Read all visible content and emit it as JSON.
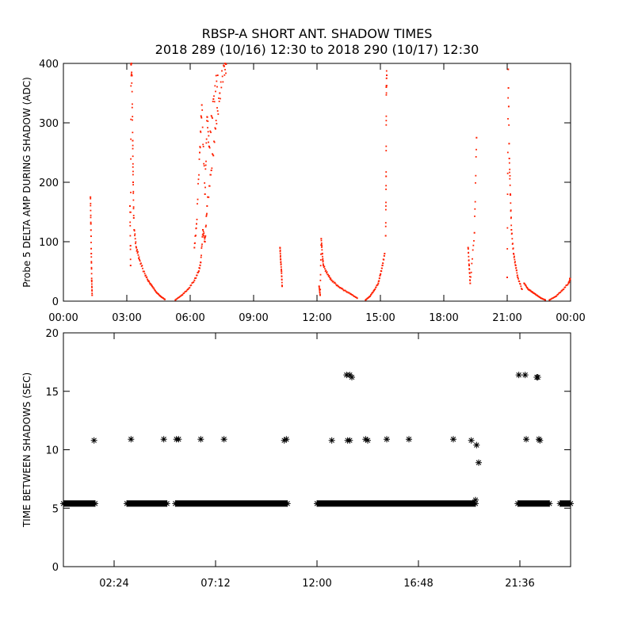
{
  "title": {
    "line1": "RBSP-A SHORT ANT. SHADOW TIMES",
    "line2": "2018 289 (10/16) 12:30 to 2018 290 (10/17) 12:30"
  },
  "colors": {
    "amp_points": "#ff2000",
    "interval_points": "#000000",
    "axes": "#000000"
  },
  "chart_data": [
    {
      "type": "scatter",
      "name": "delta-amp-panel",
      "ylabel": "Probe 5 DELTA AMP DURING SHADOW (ADC)",
      "xlim": [
        0,
        24
      ],
      "ylim": [
        0,
        400
      ],
      "x_ticks": [
        0,
        3,
        6,
        9,
        12,
        15,
        18,
        21,
        24
      ],
      "x_tick_labels": [
        "00:00",
        "03:00",
        "06:00",
        "09:00",
        "12:00",
        "15:00",
        "18:00",
        "21:00",
        "00:00"
      ],
      "y_ticks": [
        0,
        100,
        200,
        300,
        400
      ],
      "y_tick_labels": [
        "0",
        "100",
        "200",
        "300",
        "400"
      ],
      "x_units": "hours",
      "series": [
        {
          "name": "spike-01",
          "x": [
            1.28,
            1.3,
            1.32,
            1.34,
            1.36
          ],
          "y": [
            175,
            130,
            80,
            35,
            10
          ]
        },
        {
          "name": "spike-03",
          "x": [
            3.15,
            3.18,
            3.2,
            3.24,
            3.28,
            3.3,
            3.33
          ],
          "y": [
            160,
            60,
            400,
            380,
            270,
            200,
            140
          ]
        },
        {
          "name": "decay-03",
          "x": [
            3.35,
            3.45,
            3.6,
            3.8,
            4.0,
            4.2,
            4.4,
            4.6,
            4.8
          ],
          "y": [
            120,
            90,
            70,
            50,
            35,
            25,
            15,
            8,
            3
          ]
        },
        {
          "name": "rise-06",
          "x": [
            5.3,
            5.6,
            5.9,
            6.2,
            6.4,
            6.5,
            6.6,
            6.7,
            6.8,
            7.0,
            7.2,
            7.4,
            7.6,
            7.7
          ],
          "y": [
            2,
            10,
            20,
            35,
            50,
            65,
            120,
            100,
            160,
            220,
            290,
            350,
            395,
            400
          ]
        },
        {
          "name": "scatter-06",
          "x": [
            6.2,
            6.3,
            6.45,
            6.55,
            6.7,
            6.8,
            6.9,
            7.1,
            7.3
          ],
          "y": [
            90,
            130,
            250,
            330,
            180,
            310,
            260,
            340,
            380
          ]
        },
        {
          "name": "spike-10",
          "x": [
            10.25,
            10.28,
            10.32,
            10.35
          ],
          "y": [
            90,
            70,
            50,
            25
          ]
        },
        {
          "name": "decay-12",
          "x": [
            12.1,
            12.15,
            12.2,
            12.25,
            12.3,
            12.5,
            12.7,
            13.0,
            13.3,
            13.6,
            13.9
          ],
          "y": [
            25,
            10,
            105,
            80,
            60,
            45,
            35,
            25,
            18,
            12,
            5
          ]
        },
        {
          "name": "rise-15",
          "x": [
            14.3,
            14.5,
            14.7,
            14.9,
            15.0,
            15.1,
            15.2
          ],
          "y": [
            2,
            8,
            18,
            30,
            45,
            60,
            80
          ]
        },
        {
          "name": "spike-15",
          "x": [
            15.25,
            15.27,
            15.28,
            15.3
          ],
          "y": [
            110,
            210,
            360,
            380
          ]
        },
        {
          "name": "spike-19",
          "x": [
            19.15,
            19.2,
            19.25,
            19.45,
            19.55
          ],
          "y": [
            90,
            60,
            30,
            115,
            275
          ]
        },
        {
          "name": "spike-21",
          "x": [
            21.0,
            21.05,
            21.1,
            21.15,
            21.2,
            21.3,
            21.4,
            21.5,
            21.7
          ],
          "y": [
            40,
            390,
            240,
            180,
            120,
            80,
            60,
            40,
            20
          ]
        },
        {
          "name": "decay-22",
          "x": [
            21.8,
            22.0,
            22.2,
            22.4,
            22.6,
            22.8
          ],
          "y": [
            30,
            20,
            15,
            10,
            5,
            2
          ]
        },
        {
          "name": "rise-24",
          "x": [
            23.0,
            23.3,
            23.6,
            23.9,
            24.0
          ],
          "y": [
            2,
            8,
            18,
            30,
            38
          ]
        }
      ]
    },
    {
      "type": "scatter",
      "name": "interval-panel",
      "ylabel": "TIME BETWEEN SHADOWS (SEC)",
      "xlim": [
        0,
        24
      ],
      "ylim": [
        0,
        20
      ],
      "x_ticks": [
        2.4,
        7.2,
        12.0,
        16.8,
        21.6
      ],
      "x_tick_labels": [
        "02:24",
        "07:12",
        "12:00",
        "16:48",
        "21:36"
      ],
      "y_ticks": [
        0,
        5,
        10,
        15,
        20
      ],
      "y_tick_labels": [
        "0",
        "5",
        "10",
        "15",
        "20"
      ],
      "x_units": "hours",
      "baseline": {
        "value": 5.4,
        "segments": [
          [
            0.0,
            1.5
          ],
          [
            3.0,
            4.9
          ],
          [
            5.3,
            10.6
          ],
          [
            12.0,
            19.5
          ],
          [
            21.5,
            23.0
          ],
          [
            23.5,
            24.0
          ]
        ]
      },
      "points": {
        "x": [
          1.45,
          3.2,
          4.75,
          5.35,
          5.45,
          6.5,
          7.6,
          10.45,
          10.55,
          12.7,
          13.4,
          13.55,
          13.65,
          13.45,
          13.55,
          14.3,
          14.4,
          15.3,
          16.35,
          18.45,
          19.3,
          19.55,
          19.65,
          19.5,
          21.55,
          21.85,
          21.9,
          22.4,
          22.45,
          22.5,
          22.55
        ],
        "y": [
          10.8,
          10.9,
          10.9,
          10.9,
          10.9,
          10.9,
          10.9,
          10.8,
          10.9,
          10.8,
          16.4,
          16.4,
          16.2,
          10.8,
          10.8,
          10.9,
          10.8,
          10.9,
          10.9,
          10.9,
          10.8,
          10.4,
          8.9,
          5.7,
          16.4,
          16.4,
          10.9,
          16.2,
          16.2,
          10.9,
          10.8
        ]
      }
    }
  ]
}
